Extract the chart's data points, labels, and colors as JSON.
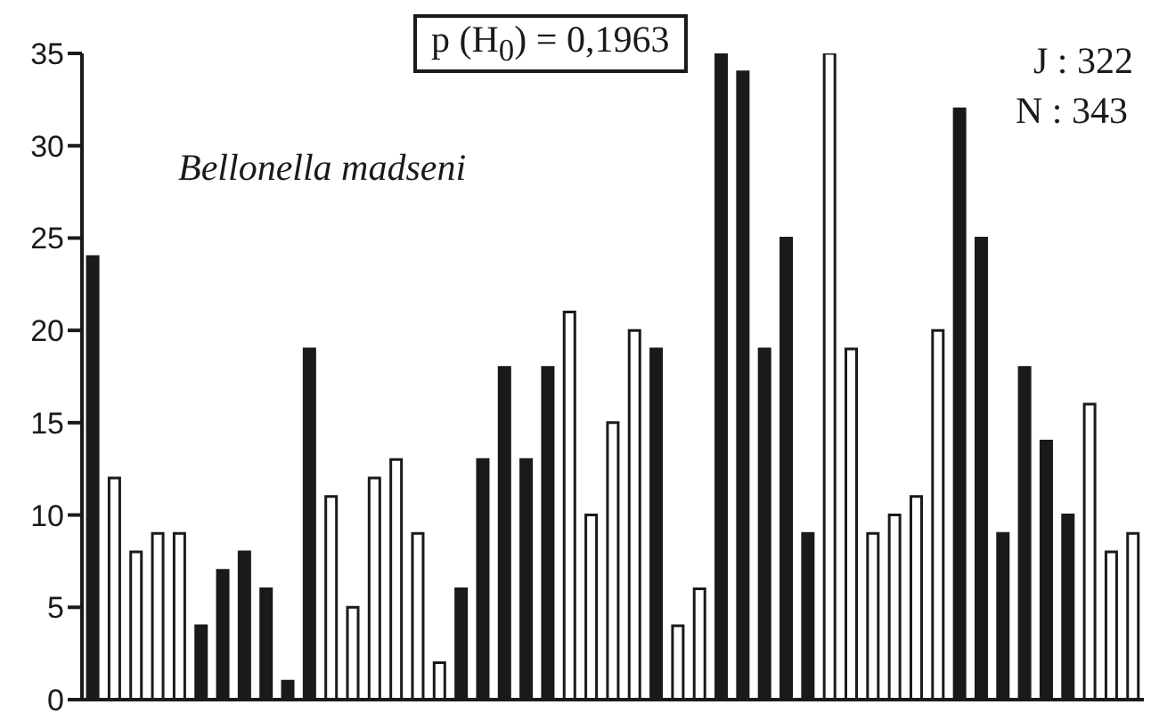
{
  "chart_data": {
    "type": "bar",
    "categories": [
      null,
      null,
      null,
      null,
      null,
      null,
      null,
      null,
      null,
      null,
      null,
      null,
      null,
      null,
      null,
      null,
      null,
      null,
      null,
      null,
      null,
      null,
      null,
      null,
      null,
      null,
      null,
      null,
      null,
      null,
      null,
      null,
      null,
      null,
      null,
      null,
      null,
      null,
      null,
      null,
      null,
      null,
      null,
      null,
      null,
      null,
      null,
      null,
      null
    ],
    "values": [
      24,
      12,
      8,
      9,
      9,
      4,
      7,
      8,
      6,
      1,
      19,
      11,
      5,
      12,
      13,
      9,
      2,
      6,
      13,
      18,
      13,
      18,
      21,
      10,
      15,
      20,
      19,
      4,
      6,
      35,
      34,
      19,
      25,
      9,
      35,
      19,
      9,
      10,
      11,
      20,
      32,
      25,
      9,
      18,
      14,
      10,
      16,
      8,
      9
    ],
    "colors": [
      "#1a1a1a",
      "#ffffff",
      "#ffffff",
      "#ffffff",
      "#ffffff",
      "#1a1a1a",
      "#1a1a1a",
      "#1a1a1a",
      "#1a1a1a",
      "#1a1a1a",
      "#1a1a1a",
      "#ffffff",
      "#ffffff",
      "#ffffff",
      "#ffffff",
      "#ffffff",
      "#ffffff",
      "#1a1a1a",
      "#1a1a1a",
      "#1a1a1a",
      "#1a1a1a",
      "#1a1a1a",
      "#ffffff",
      "#ffffff",
      "#ffffff",
      "#ffffff",
      "#1a1a1a",
      "#ffffff",
      "#ffffff",
      "#1a1a1a",
      "#1a1a1a",
      "#1a1a1a",
      "#1a1a1a",
      "#1a1a1a",
      "#ffffff",
      "#ffffff",
      "#ffffff",
      "#ffffff",
      "#ffffff",
      "#ffffff",
      "#1a1a1a",
      "#1a1a1a",
      "#1a1a1a",
      "#1a1a1a",
      "#1a1a1a",
      "#1a1a1a",
      "#ffffff",
      "#ffffff",
      "#ffffff"
    ],
    "ylim": [
      0,
      35
    ],
    "yticks": [
      0,
      5,
      10,
      15,
      20,
      25,
      30,
      35
    ],
    "grid": false,
    "tick_labels": "y",
    "annotations": [
      "p (H$_{0}$) = 0,1963",
      "Bellonella madseni",
      "J : 322",
      "N : 343"
    ]
  }
}
